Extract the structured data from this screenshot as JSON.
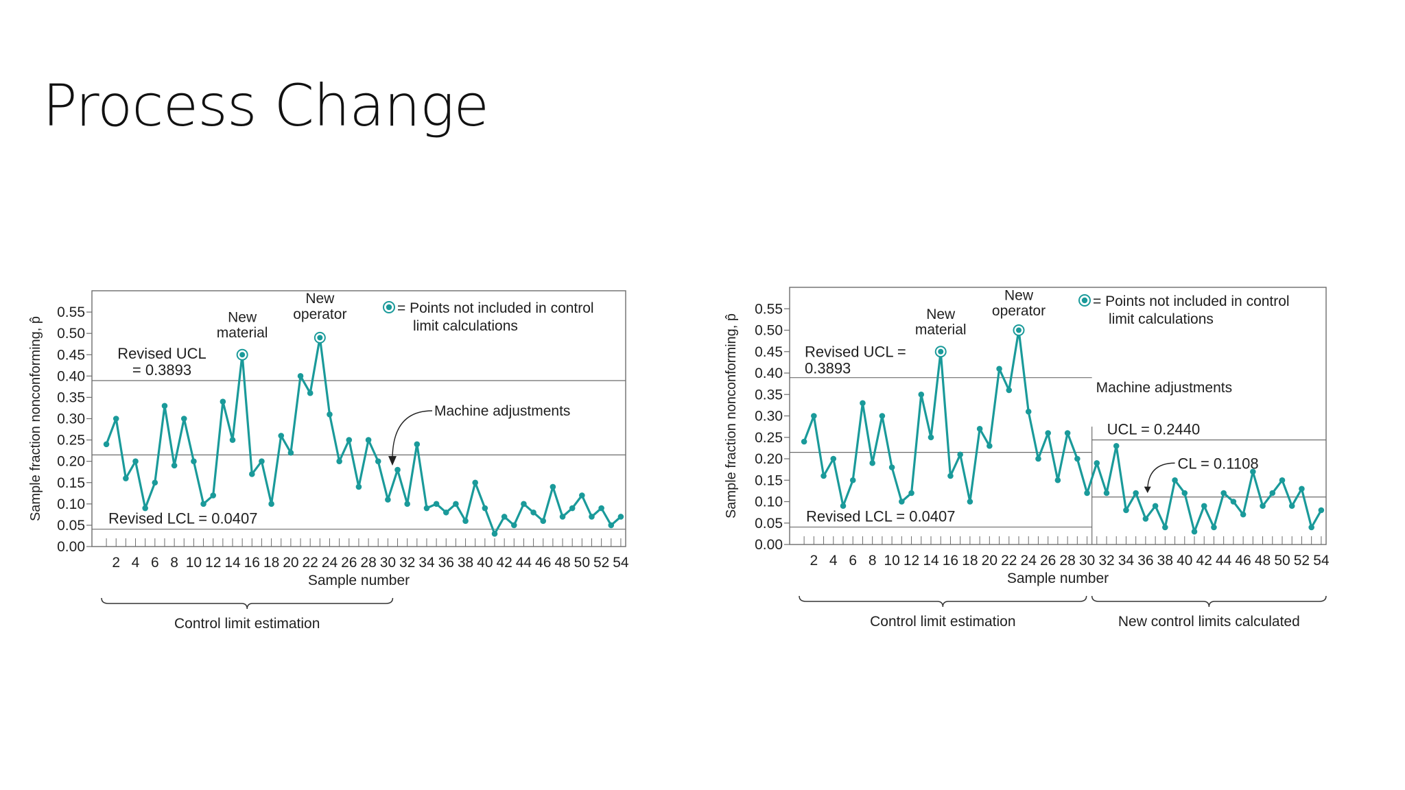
{
  "slide": {
    "title": "Process Change"
  },
  "colors": {
    "series": "#1a9a9a",
    "axis": "#6b6b6b",
    "grid_line": "#6b6b6b",
    "text": "#1f1f1f"
  },
  "chart_data": [
    {
      "type": "line",
      "title": "",
      "xlabel": "Sample number",
      "ylabel": "Sample fraction nonconforming, p̂",
      "ylim": [
        0,
        0.6
      ],
      "yticks": [
        "0.00",
        "0.05",
        "0.10",
        "0.15",
        "0.20",
        "0.25",
        "0.30",
        "0.35",
        "0.40",
        "0.45",
        "0.50",
        "0.55"
      ],
      "xticks": [
        "2",
        "4",
        "6",
        "8",
        "10",
        "12",
        "14",
        "16",
        "18",
        "20",
        "22",
        "24",
        "26",
        "28",
        "30",
        "32",
        "34",
        "36",
        "38",
        "40",
        "42",
        "44",
        "46",
        "48",
        "50",
        "52",
        "54"
      ],
      "x": [
        1,
        2,
        3,
        4,
        5,
        6,
        7,
        8,
        9,
        10,
        11,
        12,
        13,
        14,
        15,
        16,
        17,
        18,
        19,
        20,
        21,
        22,
        23,
        24,
        25,
        26,
        27,
        28,
        29,
        30,
        31,
        32,
        33,
        34,
        35,
        36,
        37,
        38,
        39,
        40,
        41,
        42,
        43,
        44,
        45,
        46,
        47,
        48,
        49,
        50,
        51,
        52,
        53,
        54
      ],
      "values": [
        0.24,
        0.3,
        0.16,
        0.2,
        0.09,
        0.15,
        0.33,
        0.19,
        0.3,
        0.2,
        0.1,
        0.12,
        0.34,
        0.25,
        0.45,
        0.17,
        0.2,
        0.1,
        0.26,
        0.22,
        0.4,
        0.36,
        0.49,
        0.31,
        0.2,
        0.25,
        0.14,
        0.25,
        0.2,
        0.11,
        0.18,
        0.1,
        0.24,
        0.09,
        0.1,
        0.08,
        0.1,
        0.06,
        0.15,
        0.09,
        0.03,
        0.07,
        0.05,
        0.1,
        0.08,
        0.06,
        0.14,
        0.07,
        0.09,
        0.12,
        0.07,
        0.09,
        0.05,
        0.07
      ],
      "excluded_points": [
        15,
        23
      ],
      "lines": [
        {
          "label": "Revised UCL\n= 0.3893",
          "value": 0.3893
        },
        {
          "label": "",
          "value": 0.215
        },
        {
          "label": "Revised LCL = 0.0407",
          "value": 0.0407
        }
      ],
      "annotations": {
        "new_material": "New\nmaterial",
        "new_operator": "New\noperator",
        "machine_adjustments": "Machine adjustments",
        "legend": "= Points not included in control\nlimit calculations"
      },
      "brackets": [
        {
          "label": "Control limit estimation",
          "from": 1,
          "to": 30
        }
      ]
    },
    {
      "type": "line",
      "title": "",
      "xlabel": "Sample number",
      "ylabel": "Sample fraction nonconforming, p̂",
      "ylim": [
        0,
        0.6
      ],
      "yticks": [
        "0.00",
        "0.05",
        "0.10",
        "0.15",
        "0.20",
        "0.25",
        "0.30",
        "0.35",
        "0.40",
        "0.45",
        "0.50",
        "0.55"
      ],
      "xticks": [
        "2",
        "4",
        "6",
        "8",
        "10",
        "12",
        "14",
        "16",
        "18",
        "20",
        "22",
        "24",
        "26",
        "28",
        "30",
        "32",
        "34",
        "36",
        "38",
        "40",
        "42",
        "44",
        "46",
        "48",
        "50",
        "52",
        "54"
      ],
      "x": [
        1,
        2,
        3,
        4,
        5,
        6,
        7,
        8,
        9,
        10,
        11,
        12,
        13,
        14,
        15,
        16,
        17,
        18,
        19,
        20,
        21,
        22,
        23,
        24,
        25,
        26,
        27,
        28,
        29,
        30,
        31,
        32,
        33,
        34,
        35,
        36,
        37,
        38,
        39,
        40,
        41,
        42,
        43,
        44,
        45,
        46,
        47,
        48,
        49,
        50,
        51,
        52,
        53,
        54
      ],
      "values": [
        0.24,
        0.3,
        0.16,
        0.2,
        0.09,
        0.15,
        0.33,
        0.19,
        0.3,
        0.18,
        0.1,
        0.12,
        0.35,
        0.25,
        0.45,
        0.16,
        0.21,
        0.1,
        0.27,
        0.23,
        0.41,
        0.36,
        0.5,
        0.31,
        0.2,
        0.26,
        0.15,
        0.26,
        0.2,
        0.12,
        0.19,
        0.12,
        0.23,
        0.08,
        0.12,
        0.06,
        0.09,
        0.04,
        0.15,
        0.12,
        0.03,
        0.09,
        0.04,
        0.12,
        0.1,
        0.07,
        0.17,
        0.09,
        0.12,
        0.15,
        0.09,
        0.13,
        0.04,
        0.08
      ],
      "excluded_points": [
        15,
        23
      ],
      "lines": [
        {
          "label": "Revised UCL =\n0.3893",
          "value": 0.3893,
          "segment": "left"
        },
        {
          "label": "",
          "value": 0.215,
          "segment": "left"
        },
        {
          "label": "Revised LCL = 0.0407",
          "value": 0.0407,
          "segment": "left"
        },
        {
          "label": "UCL = 0.2440",
          "value": 0.244,
          "segment": "right"
        },
        {
          "label": "CL = 0.1108",
          "value": 0.1108,
          "segment": "right"
        }
      ],
      "annotations": {
        "new_material": "New\nmaterial",
        "new_operator": "New\noperator",
        "machine_adjustments": "Machine adjustments",
        "legend": "= Points not included in control\nlimit calculations"
      },
      "brackets": [
        {
          "label": "Control limit estimation",
          "from": 1,
          "to": 30
        },
        {
          "label": "New control limits calculated",
          "from": 31,
          "to": 54
        }
      ]
    }
  ]
}
